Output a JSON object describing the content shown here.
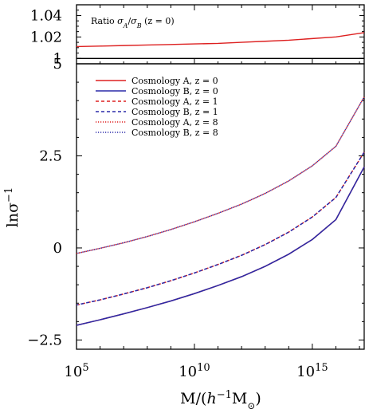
{
  "chart_data": [
    {
      "type": "line",
      "panel": "ratio",
      "annotation": "Ratio σ_A/σ_B (z = 0)",
      "annotation_parts": {
        "prefix": "Ratio ",
        "symbol_a": "σ",
        "sub_a": "A",
        "slash": "/",
        "symbol_b": "σ",
        "sub_b": "B",
        "suffix": " (z = 0)"
      },
      "ylim": [
        0.995,
        1.05
      ],
      "yticks": [
        {
          "value": 1,
          "label": "1"
        },
        {
          "value": 1.02,
          "label": "1.02"
        },
        {
          "value": 1.04,
          "label": "1.04"
        }
      ],
      "x_log10": [
        5,
        6,
        7,
        8,
        9,
        10,
        11,
        12,
        13,
        14,
        15,
        16,
        17.2
      ],
      "series": [
        {
          "values": [
            1.011,
            1.0115,
            1.012,
            1.0125,
            1.013,
            1.0135,
            1.014,
            1.015,
            1.016,
            1.017,
            1.0185,
            1.02,
            1.024
          ],
          "color": "#dd2020"
        },
        {
          "values": [
            1,
            1,
            1,
            1,
            1,
            1,
            1,
            1,
            1,
            1,
            1,
            1,
            1
          ],
          "color": "#000000"
        }
      ]
    },
    {
      "type": "line",
      "panel": "main",
      "xlabel_parts": {
        "prefix": "M/(",
        "h": "h",
        "exp": "−1",
        "m": "M",
        "sun": "⊙",
        "suffix": ")"
      },
      "ylabel_parts": {
        "base": "lnσ",
        "exp": "−1"
      },
      "xscale": "log",
      "xlim_log10": [
        5,
        17.2
      ],
      "ylim": [
        -2.75,
        5
      ],
      "xticks": [
        {
          "log10": 5,
          "base": "10",
          "exp": "5"
        },
        {
          "log10": 10,
          "base": "10",
          "exp": "10"
        },
        {
          "log10": 15,
          "base": "10",
          "exp": "15"
        }
      ],
      "yticks": [
        {
          "value": -2.5,
          "label": "−2.5"
        },
        {
          "value": 0,
          "label": "0"
        },
        {
          "value": 2.5,
          "label": "2.5"
        },
        {
          "value": 5,
          "label": "5"
        }
      ],
      "x_log10": [
        5,
        6,
        7,
        8,
        9,
        10,
        11,
        12,
        13,
        14,
        15,
        16,
        17.2
      ],
      "series": [
        {
          "name": "Cosmology A, z = 0",
          "style": "solid",
          "color": "#dd2020",
          "values": [
            -2.1,
            -1.95,
            -1.79,
            -1.62,
            -1.44,
            -1.24,
            -1.02,
            -0.78,
            -0.5,
            -0.17,
            0.23,
            0.77,
            2.2
          ]
        },
        {
          "name": "Cosmology B, z = 0",
          "style": "solid",
          "color": "#2a2aa8",
          "values": [
            -2.1,
            -1.95,
            -1.79,
            -1.62,
            -1.44,
            -1.24,
            -1.02,
            -0.78,
            -0.5,
            -0.17,
            0.23,
            0.77,
            2.2
          ]
        },
        {
          "name": "Cosmology A, z = 1",
          "style": "dashed",
          "color": "#dd2020",
          "values": [
            -1.55,
            -1.41,
            -1.25,
            -1.08,
            -0.89,
            -0.68,
            -0.45,
            -0.2,
            0.09,
            0.43,
            0.84,
            1.37,
            2.6
          ]
        },
        {
          "name": "Cosmology B, z = 1",
          "style": "dashed",
          "color": "#2a2aa8",
          "values": [
            -1.55,
            -1.41,
            -1.25,
            -1.08,
            -0.89,
            -0.68,
            -0.45,
            -0.2,
            0.09,
            0.43,
            0.84,
            1.37,
            2.6
          ]
        },
        {
          "name": "Cosmology A, z = 8",
          "style": "dotted",
          "color": "#dd2020",
          "values": [
            -0.15,
            -0.01,
            0.14,
            0.31,
            0.5,
            0.71,
            0.94,
            1.19,
            1.48,
            1.82,
            2.23,
            2.76,
            4.1
          ]
        },
        {
          "name": "Cosmology B, z = 8",
          "style": "dotted",
          "color": "#2a2aa8",
          "values": [
            -0.15,
            -0.01,
            0.14,
            0.31,
            0.5,
            0.71,
            0.94,
            1.19,
            1.48,
            1.82,
            2.23,
            2.76,
            4.1
          ]
        }
      ],
      "legend_position": "top-left"
    }
  ]
}
